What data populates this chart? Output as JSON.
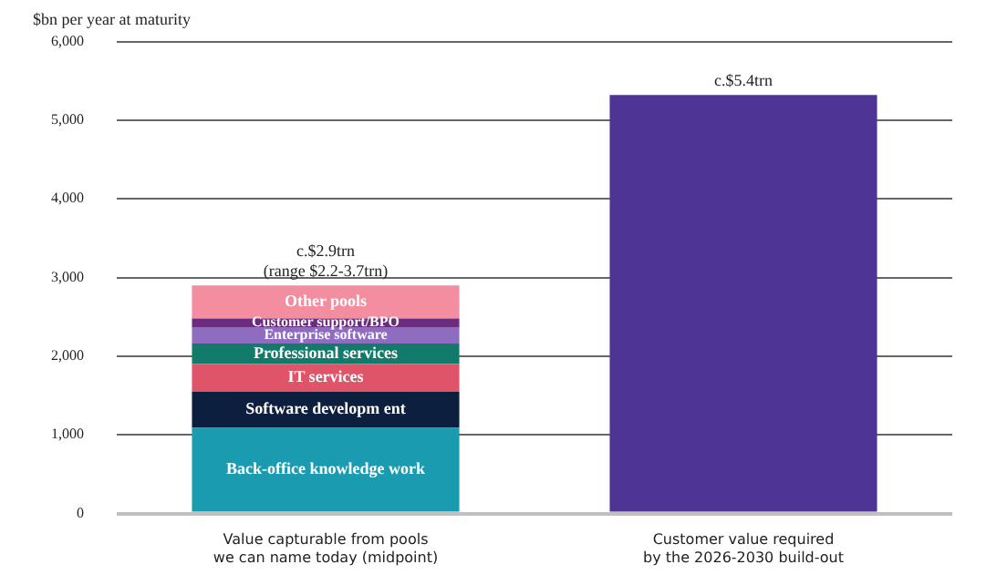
{
  "chart_data": {
    "type": "bar",
    "stacked": true,
    "ylabel": "$bn per year at maturity",
    "categories": [
      "Value capturable from pools\nwe can name today (midpoint)",
      "Customer value required\nby the 2026-2030 build-out"
    ],
    "series": [
      {
        "name": "Back-office knowledge work",
        "color": "#1a9bb0",
        "values": [
          1090,
          null
        ]
      },
      {
        "name": "Software developm ent",
        "color": "#0d1f3f",
        "values": [
          460,
          null
        ]
      },
      {
        "name": "IT services",
        "color": "#e0546a",
        "values": [
          350,
          null
        ]
      },
      {
        "name": "Professional services",
        "color": "#127a6a",
        "values": [
          260,
          null
        ]
      },
      {
        "name": "Enterprise software",
        "color": "#8e6cc0",
        "values": [
          210,
          null
        ]
      },
      {
        "name": "Customer support/BPO",
        "color": "#6a2c7d",
        "values": [
          110,
          null
        ]
      },
      {
        "name": "Other pools",
        "color": "#f28ea0",
        "values": [
          420,
          null
        ]
      },
      {
        "color": "#4e3494",
        "values": [
          null,
          5320
        ]
      }
    ],
    "ylim": [
      0,
      6000
    ],
    "yticks": [
      0,
      {
        "value": 1000,
        "label": "1,000"
      },
      {
        "value": 2000,
        "label": "2,000"
      },
      {
        "value": 3000,
        "label": "3,000"
      },
      {
        "value": 4000,
        "label": "4,000"
      },
      {
        "value": 5000,
        "label": "5,000"
      },
      {
        "value": 6000,
        "label": "6,000"
      }
    ],
    "grid": "y",
    "legend": false,
    "annotations": [
      {
        "text": "c.$2.9trn\n(range $2.2-3.7trn)",
        "x": "Value capturable from pools\nwe can name today (midpoint)",
        "y": 2900
      },
      {
        "text": "c.$5.4trn",
        "x": "Customer value required\nby the 2026-2030 build-out",
        "y": 5320
      }
    ]
  }
}
